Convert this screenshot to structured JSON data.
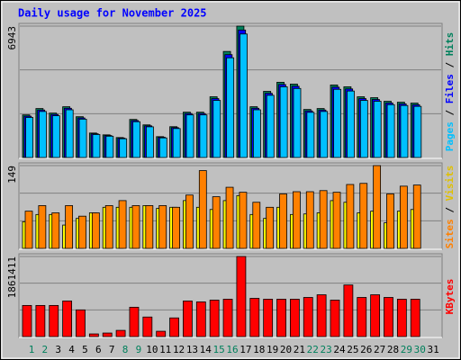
{
  "chart_data": [
    {
      "type": "bar",
      "title": "Daily usage for November 2025",
      "ylim": [
        0,
        6943
      ],
      "yticks": [
        6943
      ],
      "series": [
        {
          "name": "Hits",
          "color": "#00805c",
          "values": [
            2251,
            2587,
            2347,
            2682,
            2155,
            1293,
            1197,
            1054,
            2012,
            1724,
            1102,
            1628,
            2395,
            2395,
            3209,
            5604,
            6943,
            2682,
            3496,
            3975,
            3880,
            2538,
            2587,
            3832,
            3736,
            3209,
            3161,
            2970,
            2922,
            2874,
            null
          ]
        },
        {
          "name": "Files",
          "color": "#0000ff",
          "values": [
            2184,
            2509,
            2277,
            2602,
            2090,
            1254,
            1161,
            1022,
            1952,
            1672,
            1069,
            1579,
            2323,
            2323,
            3113,
            5436,
            6735,
            2602,
            3391,
            3856,
            3764,
            2462,
            2509,
            3717,
            3624,
            3113,
            3066,
            2881,
            2834,
            2788,
            null
          ]
        },
        {
          "name": "Pages",
          "color": "#00c0ff",
          "values": [
            2116,
            2432,
            2206,
            2521,
            2026,
            1215,
            1125,
            991,
            1891,
            1621,
            1036,
            1530,
            2251,
            2251,
            3016,
            5268,
            6526,
            2521,
            3286,
            3737,
            3647,
            2386,
            2432,
            3602,
            3512,
            3016,
            2971,
            2792,
            2747,
            2702,
            null
          ]
        }
      ]
    },
    {
      "type": "bar",
      "ylim": [
        0,
        149
      ],
      "yticks": [
        149
      ],
      "series": [
        {
          "name": "Visits",
          "color": "#ffff00",
          "values": [
            48,
            61,
            61,
            42,
            54,
            64,
            74,
            74,
            74,
            77,
            72,
            74,
            86,
            74,
            70,
            86,
            95,
            61,
            54,
            74,
            61,
            62,
            64,
            86,
            83,
            64,
            67,
            46,
            67,
            70,
            null
          ]
        },
        {
          "name": "Sites",
          "color": "#ff8000",
          "values": [
            67,
            77,
            64,
            77,
            58,
            64,
            77,
            86,
            77,
            77,
            77,
            74,
            96,
            140,
            93,
            110,
            101,
            83,
            74,
            98,
            102,
            102,
            104,
            101,
            115,
            117,
            149,
            98,
            112,
            114,
            null
          ]
        }
      ]
    },
    {
      "type": "bar",
      "ylim": [
        0,
        1861411
      ],
      "yticks": [
        1861411
      ],
      "categories": [
        "1",
        "2",
        "3",
        "4",
        "5",
        "6",
        "7",
        "8",
        "9",
        "10",
        "11",
        "12",
        "13",
        "14",
        "15",
        "16",
        "17",
        "18",
        "19",
        "20",
        "21",
        "22",
        "23",
        "24",
        "25",
        "26",
        "27",
        "28",
        "29",
        "30",
        "31"
      ],
      "category_colors": [
        "#00805c",
        "#00805c",
        "#000000",
        "#000000",
        "#000000",
        "#000000",
        "#000000",
        "#00805c",
        "#00805c",
        "#000000",
        "#000000",
        "#000000",
        "#000000",
        "#000000",
        "#00805c",
        "#00805c",
        "#000000",
        "#000000",
        "#000000",
        "#000000",
        "#000000",
        "#00805c",
        "#00805c",
        "#000000",
        "#000000",
        "#000000",
        "#000000",
        "#000000",
        "#00805c",
        "#00805c",
        "#000000"
      ],
      "series": [
        {
          "name": "KBytes",
          "color": "#ff0000",
          "values": [
            723870,
            723870,
            723870,
            827280,
            620460,
            62046,
            82728,
            144774,
            682506,
            455004,
            124092,
            434322,
            827280,
            806598,
            847962,
            868644,
            1861411,
            889326,
            868644,
            868644,
            868644,
            910008,
            972054,
            847962,
            1199556,
            910008,
            972054,
            910008,
            868644,
            868644,
            null
          ]
        }
      ]
    }
  ]
}
